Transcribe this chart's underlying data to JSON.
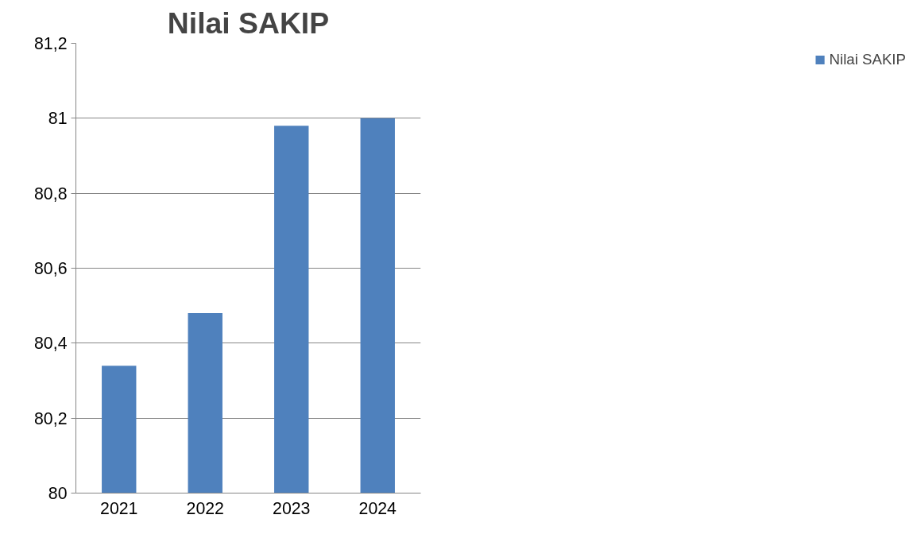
{
  "chart_data": {
    "type": "bar",
    "title": "Nilai SAKIP",
    "categories": [
      "2021",
      "2022",
      "2023",
      "2024"
    ],
    "series": [
      {
        "name": "Nilai SAKIP",
        "color": "#4f81bd",
        "values": [
          80.34,
          80.48,
          80.98,
          81.0
        ]
      }
    ],
    "ylim": [
      80,
      81.2
    ],
    "yticks": [
      80,
      {
        "value": 80.2,
        "label": "80,2"
      },
      {
        "value": 80.4,
        "label": "80,4"
      },
      {
        "value": 80.6,
        "label": "80,6"
      },
      {
        "value": 80.8,
        "label": "80,8"
      },
      81,
      {
        "value": 81.2,
        "label": "81,2"
      }
    ],
    "grid": "y",
    "legend": "right"
  }
}
